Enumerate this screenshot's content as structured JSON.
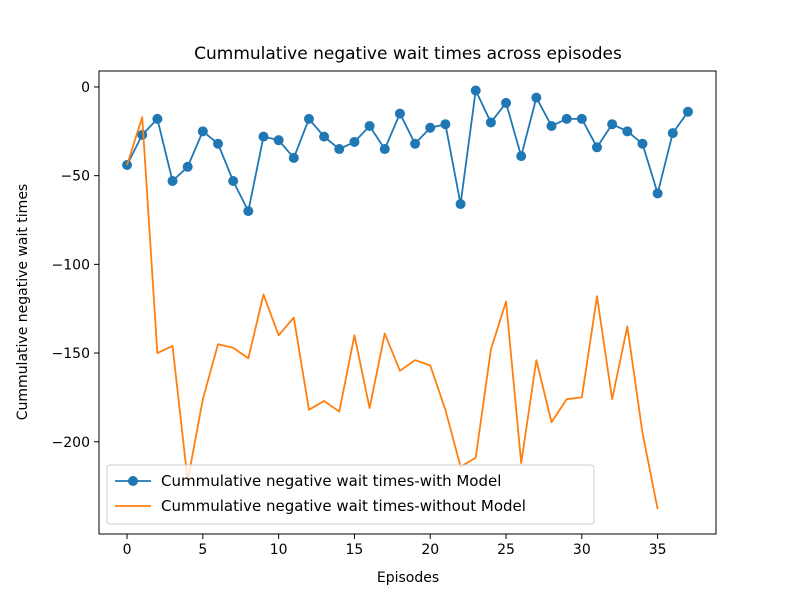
{
  "chart_data": {
    "type": "line",
    "title": "Cummulative negative wait times across episodes",
    "xlabel": "Episodes",
    "ylabel": "Cummulative negative wait times",
    "xlim": [
      -1.85,
      38.85
    ],
    "ylim": [
      -252,
      9
    ],
    "xticks": [
      0,
      5,
      10,
      15,
      20,
      25,
      30,
      35
    ],
    "yticks": [
      0,
      -50,
      -100,
      -150,
      -200
    ],
    "ytick_labels": [
      "0",
      "−50",
      "−100",
      "−150",
      "−200"
    ],
    "grid": false,
    "legend_position": "lower-left",
    "series": [
      {
        "name": "Cummulative negative wait times-with Model",
        "color": "#1f77b4",
        "marker": "circle",
        "x": [
          0,
          1,
          2,
          3,
          4,
          5,
          6,
          7,
          8,
          9,
          10,
          11,
          12,
          13,
          14,
          15,
          16,
          17,
          18,
          19,
          20,
          21,
          22,
          23,
          24,
          25,
          26,
          27,
          28,
          29,
          30,
          31,
          32,
          33,
          34,
          35,
          36,
          37
        ],
        "values": [
          -44,
          -27,
          -18,
          -53,
          -45,
          -25,
          -32,
          -53,
          -70,
          -28,
          -30,
          -40,
          -18,
          -28,
          -35,
          -31,
          -22,
          -35,
          -15,
          -32,
          -23,
          -21,
          -66,
          -2,
          -20,
          -9,
          -39,
          -6,
          -22,
          -18,
          -18,
          -34,
          -21,
          -25,
          -32,
          -60,
          -26,
          -14
        ]
      },
      {
        "name": "Cummulative negative wait times-without Model",
        "color": "#ff7f0e",
        "marker": "none",
        "x": [
          0,
          1,
          2,
          3,
          4,
          5,
          6,
          7,
          8,
          9,
          10,
          11,
          12,
          13,
          14,
          15,
          16,
          17,
          18,
          19,
          20,
          21,
          22,
          23,
          24,
          25,
          26,
          27,
          28,
          29,
          30,
          31,
          32,
          33,
          34,
          35
        ],
        "values": [
          -44,
          -17,
          -150,
          -146,
          -222,
          -176,
          -145,
          -147,
          -153,
          -117,
          -140,
          -130,
          -182,
          -177,
          -183,
          -140,
          -181,
          -139,
          -160,
          -154,
          -157,
          -182,
          -214,
          -209,
          -148,
          -121,
          -212,
          -154,
          -189,
          -176,
          -175,
          -118,
          -176,
          -135,
          -195,
          -238
        ]
      }
    ]
  }
}
